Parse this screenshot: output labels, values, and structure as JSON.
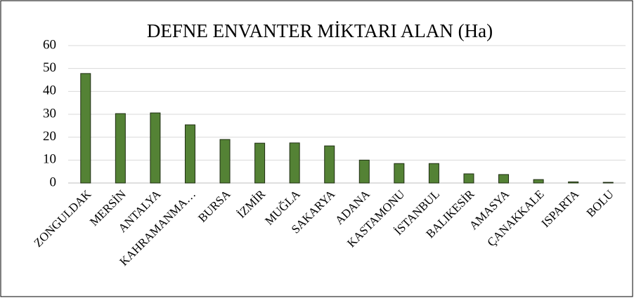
{
  "chart_data": {
    "type": "bar",
    "title": "DEFNE ENVANTER MİKTARI ALAN (Ha)",
    "categories": [
      "ZONGULDAK",
      "MERSİN",
      "ANTALYA",
      "KAHRAMANMA…",
      "BURSA",
      "İZMİR",
      "MUĞLA",
      "SAKARYA",
      "ADANA",
      "KASTAMONU",
      "İSTANBUL",
      "BALIKESİR",
      "AMASYA",
      "ÇANAKKALE",
      "ISPARTA",
      "BOLU"
    ],
    "values": [
      47.8,
      30.3,
      30.6,
      25.4,
      19,
      17.4,
      17.5,
      16.2,
      10,
      8.5,
      8.5,
      4,
      3.7,
      1.5,
      0.5,
      0.3
    ],
    "color": "#548235",
    "ylim": [
      0,
      60
    ],
    "yticks": [
      0,
      10,
      20,
      30,
      40,
      50,
      60
    ],
    "grid": true
  }
}
